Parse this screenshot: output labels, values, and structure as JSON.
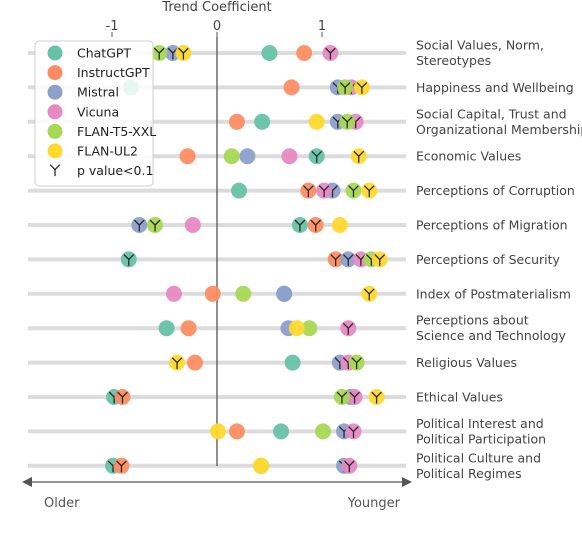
{
  "chart_data": {
    "type": "scatter",
    "xlabel": "Trend Coefficient",
    "xlim": [
      -1.85,
      1.85
    ],
    "x_ticks": [
      -1,
      0,
      1
    ],
    "x_tick_labels": [
      "-1",
      "0",
      "1"
    ],
    "direction_labels": {
      "left": "Older",
      "right": "Younger"
    },
    "grid": true,
    "legend_position": "top-left",
    "significance_marker_label": "p value<0.1",
    "colors": {
      "ChatGPT": "#66c2a5",
      "InstructGPT": "#fc8d62",
      "Mistral": "#8da0cb",
      "Vicuna": "#e78ac3",
      "FLAN-T5-XXL": "#a6d854",
      "FLAN-UL2": "#ffd92f"
    },
    "series_names": [
      "ChatGPT",
      "InstructGPT",
      "Mistral",
      "Vicuna",
      "FLAN-T5-XXL",
      "FLAN-UL2"
    ],
    "categories": [
      [
        "Social Values, Norm,",
        "Stereotypes"
      ],
      [
        "Happiness and Wellbeing"
      ],
      [
        "Social Capital, Trust and",
        "Organizational Membership"
      ],
      [
        "Economic Values"
      ],
      [
        "Perceptions of Corruption"
      ],
      [
        "Perceptions of Migration"
      ],
      [
        "Perceptions of Security"
      ],
      [
        "Index of Postmaterialism"
      ],
      [
        "Perceptions about",
        "Science and Technology"
      ],
      [
        "Religious Values"
      ],
      [
        "Ethical Values"
      ],
      [
        "Political Interest and",
        "Political Participation"
      ],
      [
        "Political Culture and",
        "Political Regimes"
      ]
    ],
    "points": [
      [
        {
          "s": "ChatGPT",
          "x": 0.5,
          "sig": false
        },
        {
          "s": "InstructGPT",
          "x": 0.83,
          "sig": false
        },
        {
          "s": "Mistral",
          "x": -0.42,
          "sig": true
        },
        {
          "s": "Vicuna",
          "x": 1.08,
          "sig": true
        },
        {
          "s": "FLAN-T5-XXL",
          "x": -0.55,
          "sig": true
        },
        {
          "s": "FLAN-UL2",
          "x": -0.32,
          "sig": true
        }
      ],
      [
        {
          "s": "ChatGPT",
          "x": -0.82,
          "sig": false
        },
        {
          "s": "InstructGPT",
          "x": 0.71,
          "sig": false
        },
        {
          "s": "Mistral",
          "x": 1.15,
          "sig": true
        },
        {
          "s": "Vicuna",
          "x": 1.28,
          "sig": true
        },
        {
          "s": "FLAN-T5-XXL",
          "x": 1.22,
          "sig": true
        },
        {
          "s": "FLAN-UL2",
          "x": 1.38,
          "sig": true
        }
      ],
      [
        {
          "s": "ChatGPT",
          "x": 0.43,
          "sig": false
        },
        {
          "s": "InstructGPT",
          "x": 0.19,
          "sig": false
        },
        {
          "s": "Mistral",
          "x": 1.15,
          "sig": true
        },
        {
          "s": "Vicuna",
          "x": 1.32,
          "sig": true
        },
        {
          "s": "FLAN-T5-XXL",
          "x": 1.24,
          "sig": true
        },
        {
          "s": "FLAN-UL2",
          "x": 0.95,
          "sig": false
        }
      ],
      [
        {
          "s": "ChatGPT",
          "x": 0.95,
          "sig": true
        },
        {
          "s": "InstructGPT",
          "x": -0.28,
          "sig": false
        },
        {
          "s": "Mistral",
          "x": 0.29,
          "sig": false
        },
        {
          "s": "Vicuna",
          "x": 0.69,
          "sig": false
        },
        {
          "s": "FLAN-T5-XXL",
          "x": 0.14,
          "sig": false
        },
        {
          "s": "FLAN-UL2",
          "x": 1.35,
          "sig": true
        }
      ],
      [
        {
          "s": "ChatGPT",
          "x": 0.21,
          "sig": false
        },
        {
          "s": "InstructGPT",
          "x": 0.87,
          "sig": true
        },
        {
          "s": "Mistral",
          "x": 1.1,
          "sig": true
        },
        {
          "s": "Vicuna",
          "x": 1.02,
          "sig": true
        },
        {
          "s": "FLAN-T5-XXL",
          "x": 1.3,
          "sig": true
        },
        {
          "s": "FLAN-UL2",
          "x": 1.45,
          "sig": true
        }
      ],
      [
        {
          "s": "ChatGPT",
          "x": 0.79,
          "sig": true
        },
        {
          "s": "InstructGPT",
          "x": 0.94,
          "sig": true
        },
        {
          "s": "Mistral",
          "x": -0.74,
          "sig": true
        },
        {
          "s": "Vicuna",
          "x": -0.23,
          "sig": false
        },
        {
          "s": "FLAN-T5-XXL",
          "x": -0.59,
          "sig": true
        },
        {
          "s": "FLAN-UL2",
          "x": 1.17,
          "sig": false
        }
      ],
      [
        {
          "s": "ChatGPT",
          "x": -0.84,
          "sig": true
        },
        {
          "s": "InstructGPT",
          "x": 1.13,
          "sig": true
        },
        {
          "s": "Mistral",
          "x": 1.25,
          "sig": true
        },
        {
          "s": "Vicuna",
          "x": 1.37,
          "sig": true
        },
        {
          "s": "FLAN-T5-XXL",
          "x": 1.47,
          "sig": true
        },
        {
          "s": "FLAN-UL2",
          "x": 1.55,
          "sig": true
        }
      ],
      [
        {
          "s": "ChatGPT",
          "x": 0.64,
          "sig": false
        },
        {
          "s": "InstructGPT",
          "x": -0.04,
          "sig": false
        },
        {
          "s": "Mistral",
          "x": 0.64,
          "sig": false
        },
        {
          "s": "Vicuna",
          "x": -0.41,
          "sig": false
        },
        {
          "s": "FLAN-T5-XXL",
          "x": 0.25,
          "sig": false
        },
        {
          "s": "FLAN-UL2",
          "x": 1.45,
          "sig": true
        }
      ],
      [
        {
          "s": "ChatGPT",
          "x": -0.48,
          "sig": false
        },
        {
          "s": "InstructGPT",
          "x": -0.27,
          "sig": false
        },
        {
          "s": "Mistral",
          "x": 0.68,
          "sig": false
        },
        {
          "s": "Vicuna",
          "x": 1.25,
          "sig": true
        },
        {
          "s": "FLAN-T5-XXL",
          "x": 0.88,
          "sig": false
        },
        {
          "s": "FLAN-UL2",
          "x": 0.76,
          "sig": false
        }
      ],
      [
        {
          "s": "ChatGPT",
          "x": 0.72,
          "sig": false
        },
        {
          "s": "InstructGPT",
          "x": -0.21,
          "sig": false
        },
        {
          "s": "Mistral",
          "x": 1.17,
          "sig": true
        },
        {
          "s": "Vicuna",
          "x": 1.25,
          "sig": true
        },
        {
          "s": "FLAN-T5-XXL",
          "x": 1.33,
          "sig": true
        },
        {
          "s": "FLAN-UL2",
          "x": -0.38,
          "sig": true
        }
      ],
      [
        {
          "s": "ChatGPT",
          "x": -0.98,
          "sig": true
        },
        {
          "s": "InstructGPT",
          "x": -0.9,
          "sig": true
        },
        {
          "s": "Mistral",
          "x": 1.27,
          "sig": true
        },
        {
          "s": "Vicuna",
          "x": 1.31,
          "sig": true
        },
        {
          "s": "FLAN-T5-XXL",
          "x": 1.19,
          "sig": true
        },
        {
          "s": "FLAN-UL2",
          "x": 1.52,
          "sig": true
        }
      ],
      [
        {
          "s": "ChatGPT",
          "x": 0.61,
          "sig": false
        },
        {
          "s": "InstructGPT",
          "x": 0.19,
          "sig": false
        },
        {
          "s": "Mistral",
          "x": 1.21,
          "sig": true
        },
        {
          "s": "Vicuna",
          "x": 1.3,
          "sig": true
        },
        {
          "s": "FLAN-T5-XXL",
          "x": 1.01,
          "sig": false
        },
        {
          "s": "FLAN-UL2",
          "x": 0.01,
          "sig": false
        }
      ],
      [
        {
          "s": "ChatGPT",
          "x": -0.99,
          "sig": true
        },
        {
          "s": "InstructGPT",
          "x": -0.91,
          "sig": true
        },
        {
          "s": "Mistral",
          "x": 1.21,
          "sig": true
        },
        {
          "s": "Vicuna",
          "x": 1.26,
          "sig": true
        },
        {
          "s": "FLAN-T5-XXL",
          "x": 0.42,
          "sig": false
        },
        {
          "s": "FLAN-UL2",
          "x": 0.42,
          "sig": false
        }
      ]
    ]
  }
}
